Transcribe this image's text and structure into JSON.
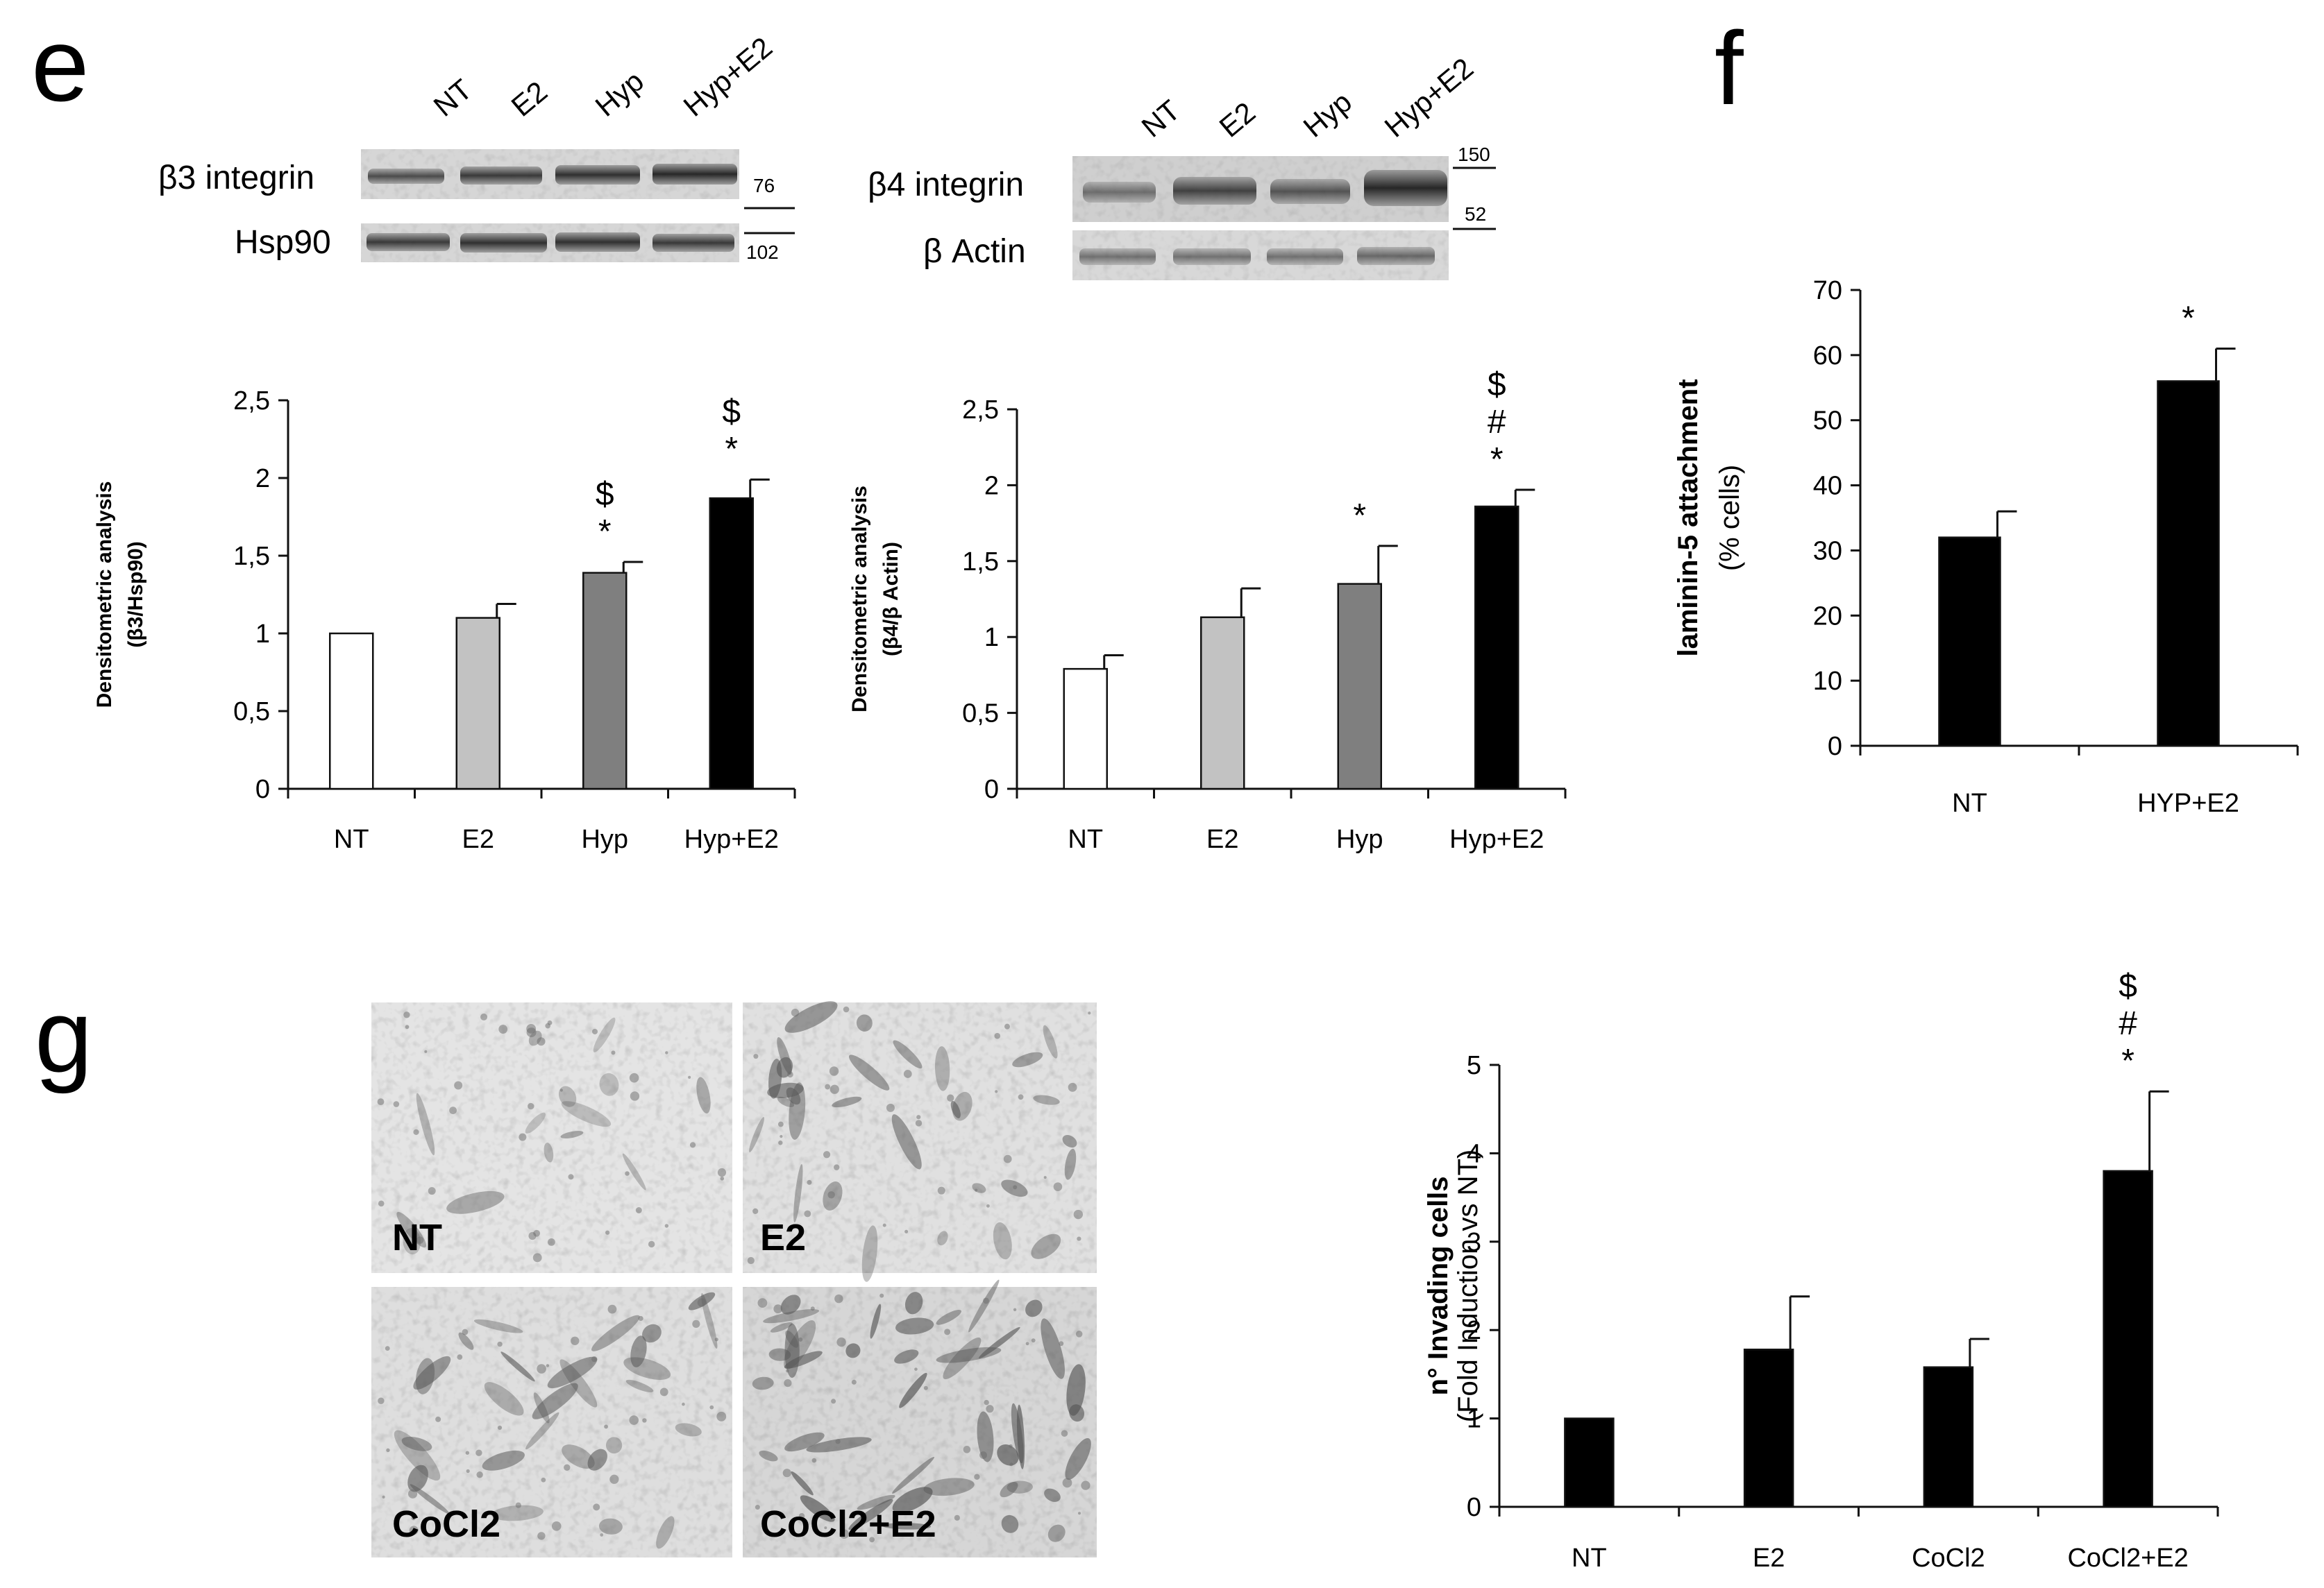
{
  "panels": {
    "e": "e",
    "f": "f",
    "g": "g"
  },
  "blot_b3": {
    "lanes": [
      "NT",
      "E2",
      "Hyp",
      "Hyp+E2"
    ],
    "row1_label": "β3 integrin",
    "row2_label": "Hsp90",
    "mw_top": "76",
    "mw_bottom": "102"
  },
  "blot_b4": {
    "lanes": [
      "NT",
      "E2",
      "Hyp",
      "Hyp+E2"
    ],
    "row1_label": "β4 integrin",
    "row2_label": "β Actin",
    "mw_top": "150",
    "mw_bottom": "52"
  },
  "micrographs": {
    "labels": [
      "NT",
      "E2",
      "CoCl2",
      "CoCl2+E2"
    ]
  },
  "chart_data": [
    {
      "id": "e1",
      "type": "bar",
      "categories": [
        "NT",
        "E2",
        "Hyp",
        "Hyp+E2"
      ],
      "values": [
        1.0,
        1.1,
        1.39,
        1.87
      ],
      "errors": [
        0,
        0.09,
        0.07,
        0.12
      ],
      "colors": [
        "#ffffff",
        "#c2c2c2",
        "#7f7f7f",
        "#000000"
      ],
      "ylabel_line1": "Densitometric analysis",
      "ylabel_line2": "(β3/Hsp90)",
      "ylim": [
        0,
        2.5
      ],
      "yticks": [
        "0",
        "0,5",
        "1",
        "1,5",
        "2",
        "2,5"
      ],
      "significance": [
        [],
        [],
        [
          "*",
          "$"
        ],
        [
          "*",
          "$"
        ]
      ]
    },
    {
      "id": "e2",
      "type": "bar",
      "categories": [
        "NT",
        "E2",
        "Hyp",
        "Hyp+E2"
      ],
      "values": [
        0.79,
        1.13,
        1.35,
        1.86
      ],
      "errors": [
        0.09,
        0.19,
        0.25,
        0.11
      ],
      "colors": [
        "#ffffff",
        "#c2c2c2",
        "#7f7f7f",
        "#000000"
      ],
      "ylabel_line1": "Densitometric analysis",
      "ylabel_line2": "(β4/β Actin)",
      "ylim": [
        0,
        2.5
      ],
      "yticks": [
        "0",
        "0,5",
        "1",
        "1,5",
        "2",
        "2,5"
      ],
      "significance": [
        [],
        [],
        [
          "*"
        ],
        [
          "*",
          "#",
          "$"
        ]
      ]
    },
    {
      "id": "f",
      "type": "bar",
      "categories": [
        "NT",
        "HYP+E2"
      ],
      "values": [
        32,
        56
      ],
      "errors": [
        4,
        5
      ],
      "colors": [
        "#000000",
        "#000000"
      ],
      "ylabel_line1": "laminin-5 attachment",
      "ylabel_line2": "(% cells)",
      "ylim": [
        0,
        70
      ],
      "yticks": [
        "0",
        "10",
        "20",
        "30",
        "40",
        "50",
        "60",
        "70"
      ],
      "significance": [
        [],
        [
          "*"
        ]
      ]
    },
    {
      "id": "g",
      "type": "bar",
      "categories": [
        "NT",
        "E2",
        "CoCl2",
        "CoCl2+E2"
      ],
      "values": [
        1.0,
        1.78,
        1.58,
        3.8
      ],
      "errors": [
        0,
        0.6,
        0.32,
        0.9
      ],
      "colors": [
        "#000000",
        "#000000",
        "#000000",
        "#000000"
      ],
      "ylabel_line1": "n° Invading cells",
      "ylabel_line2": "(Fold Induction vs NT)",
      "ylim": [
        0,
        5
      ],
      "yticks": [
        "0",
        "1",
        "2",
        "3",
        "4",
        "5"
      ],
      "significance": [
        [],
        [],
        [],
        [
          "*",
          "#",
          "$"
        ]
      ]
    }
  ]
}
